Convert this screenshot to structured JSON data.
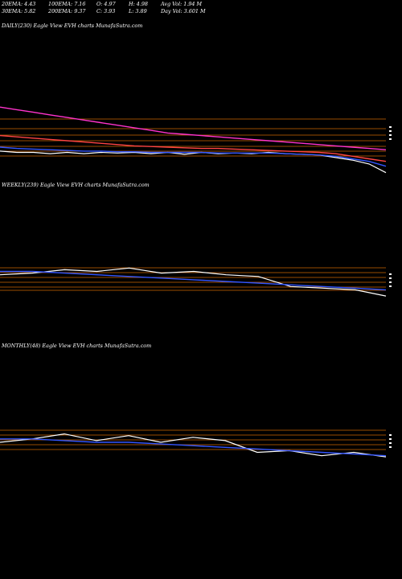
{
  "header": {
    "ema20": "20EMA: 4.43",
    "ema100": "100EMA: 7.16",
    "open": "O: 4.97",
    "high": "H: 4.98",
    "avg_vol": "Avg Vol: 1.94  M",
    "ema30": "30EMA: 5.82",
    "ema200": "200EMA: 9.37",
    "close": "C: 3.93",
    "low": "L: 3.89",
    "day_vol": "Day Vol: 3.601 M"
  },
  "panels": {
    "daily": "DAILY(230) Eagle   View  EVH charts MunafaSutra.com",
    "weekly": "WEEKLY(239) Eagle   View  EVH charts MunafaSutra.com",
    "monthly": "MONTHLY(48) Eagle   View  EVH charts MunafaSutra.com"
  },
  "colors": {
    "background": "#000000",
    "price": "#ffffff",
    "ema_short": "#3355ff",
    "ema_long": "#ff33cc",
    "ema_mid": "#ff4444",
    "level_lines": "#cc6600",
    "volume": "#ffffff"
  },
  "chart_data": [
    {
      "type": "line",
      "name": "daily",
      "x": [
        0,
        10,
        20,
        30,
        40,
        50,
        60,
        70,
        80,
        90,
        100,
        110,
        120,
        130,
        140,
        150,
        160,
        170,
        180,
        190,
        200,
        210,
        220,
        230
      ],
      "series": [
        {
          "values": [
            5.6,
            5.5,
            5.5,
            5.4,
            5.5,
            5.4,
            5.5,
            5.45,
            5.5,
            5.4,
            5.5,
            5.35,
            5.5,
            5.4,
            5.45,
            5.4,
            5.5,
            5.4,
            5.35,
            5.3,
            5.1,
            4.9,
            4.6,
            3.93
          ]
        },
        {
          "values": [
            5.9,
            5.8,
            5.75,
            5.7,
            5.65,
            5.6,
            5.6,
            5.55,
            5.55,
            5.5,
            5.5,
            5.5,
            5.5,
            5.45,
            5.45,
            5.45,
            5.45,
            5.4,
            5.35,
            5.3,
            5.2,
            5.0,
            4.8,
            4.43
          ]
        },
        {
          "values": [
            6.8,
            6.7,
            6.6,
            6.5,
            6.4,
            6.3,
            6.2,
            6.1,
            6.0,
            5.95,
            5.9,
            5.85,
            5.8,
            5.8,
            5.75,
            5.7,
            5.65,
            5.6,
            5.55,
            5.5,
            5.4,
            5.2,
            5.0,
            4.8
          ]
        },
        {
          "values": [
            9.0,
            8.8,
            8.6,
            8.4,
            8.2,
            8.0,
            7.8,
            7.6,
            7.4,
            7.2,
            7.0,
            6.9,
            6.8,
            6.7,
            6.6,
            6.5,
            6.4,
            6.3,
            6.2,
            6.1,
            6.0,
            5.9,
            5.8,
            5.7
          ]
        }
      ]
    },
    {
      "type": "line",
      "name": "weekly",
      "x": [
        0,
        20,
        40,
        60,
        80,
        100,
        120,
        140,
        160,
        180,
        200,
        220,
        239
      ],
      "series": [
        {
          "values": [
            5.2,
            5.3,
            5.5,
            5.4,
            5.6,
            5.3,
            5.4,
            5.2,
            5.1,
            4.5,
            4.4,
            4.3,
            3.93
          ]
        },
        {
          "values": [
            5.4,
            5.4,
            5.3,
            5.2,
            5.1,
            5.0,
            4.9,
            4.8,
            4.7,
            4.6,
            4.5,
            4.4,
            4.3
          ]
        }
      ]
    },
    {
      "type": "line",
      "name": "monthly",
      "x": [
        0,
        4,
        8,
        12,
        16,
        20,
        24,
        28,
        32,
        36,
        40,
        44,
        48
      ],
      "series": [
        {
          "values": [
            4.8,
            5.0,
            5.3,
            4.9,
            5.2,
            4.8,
            5.1,
            4.9,
            4.2,
            4.3,
            4.0,
            4.2,
            3.93
          ]
        },
        {
          "values": [
            5.0,
            5.0,
            4.9,
            4.8,
            4.8,
            4.7,
            4.6,
            4.5,
            4.4,
            4.3,
            4.2,
            4.1,
            4.0
          ]
        }
      ]
    }
  ]
}
